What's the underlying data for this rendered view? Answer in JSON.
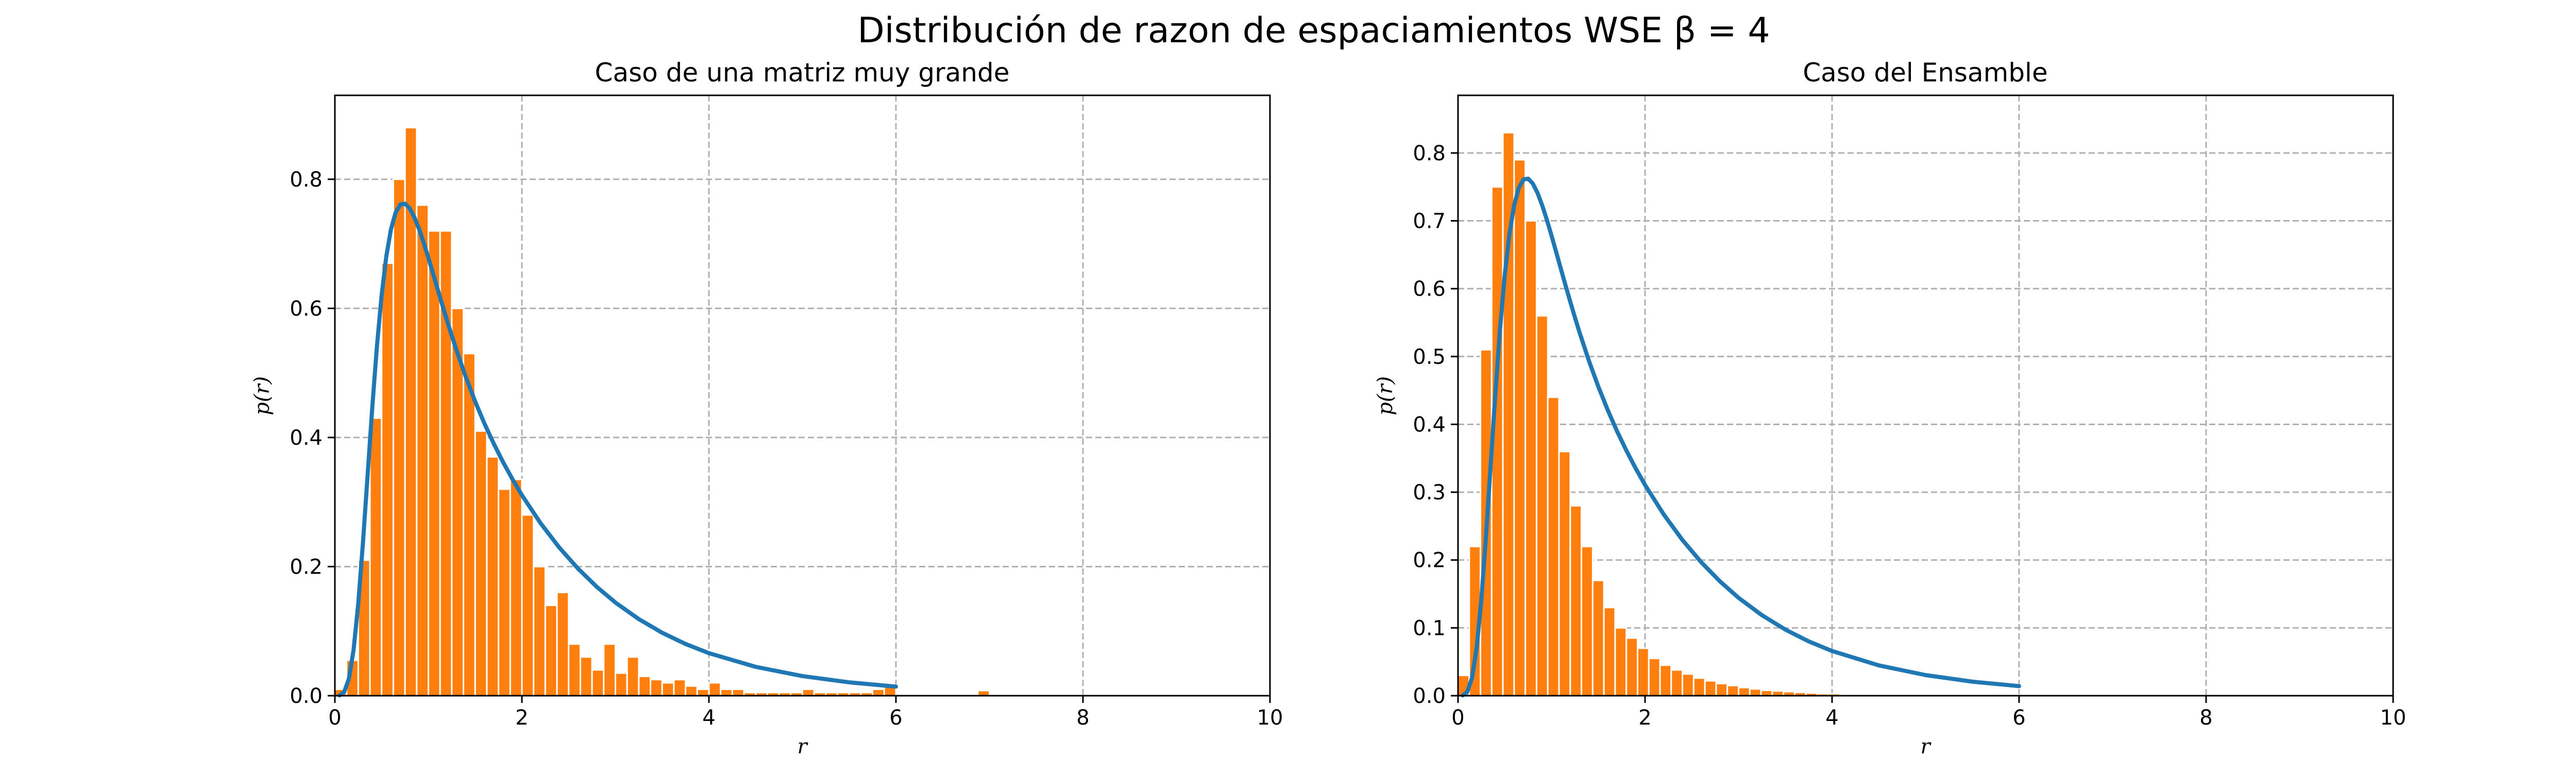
{
  "figure": {
    "suptitle": "Distribución de razon de espaciamientos WSE β = 4"
  },
  "colors": {
    "hist": "#ff7f0e",
    "curve": "#1f77b4",
    "grid": "#b0b0b0"
  },
  "chart_data": [
    {
      "type": "bar",
      "title": "Caso de una matriz muy grande",
      "xlabel": "r",
      "ylabel": "p(r)",
      "xlim": [
        0,
        10
      ],
      "ylim": [
        0,
        0.93
      ],
      "xticks": [
        0,
        2,
        4,
        6,
        8,
        10
      ],
      "yticks": [
        0.0,
        0.2,
        0.4,
        0.6,
        0.8
      ],
      "yticklabels": [
        "0.0",
        "0.2",
        "0.4",
        "0.6",
        "0.8"
      ],
      "grid": true,
      "bin_start": 0.0,
      "bin_width": 0.125,
      "values": [
        0.01,
        0.055,
        0.21,
        0.43,
        0.67,
        0.8,
        0.88,
        0.76,
        0.72,
        0.72,
        0.6,
        0.53,
        0.41,
        0.37,
        0.32,
        0.335,
        0.28,
        0.2,
        0.14,
        0.16,
        0.08,
        0.06,
        0.04,
        0.08,
        0.035,
        0.06,
        0.03,
        0.025,
        0.02,
        0.025,
        0.015,
        0.01,
        0.02,
        0.01,
        0.01,
        0.005,
        0.005,
        0.005,
        0.005,
        0.005,
        0.01,
        0.005,
        0.005,
        0.005,
        0.005,
        0.005,
        0.01,
        0.015,
        0,
        0,
        0,
        0,
        0,
        0,
        0,
        0.008
      ],
      "curve": {
        "x": [
          0.05,
          0.1,
          0.15,
          0.2,
          0.25,
          0.3,
          0.35,
          0.4,
          0.45,
          0.5,
          0.55,
          0.6,
          0.65,
          0.7,
          0.75,
          0.8,
          0.85,
          0.9,
          0.95,
          1.0,
          1.05,
          1.1,
          1.15,
          1.2,
          1.25,
          1.3,
          1.4,
          1.5,
          1.6,
          1.7,
          1.8,
          1.9,
          2.0,
          2.2,
          2.4,
          2.6,
          2.8,
          3.0,
          3.25,
          3.5,
          3.75,
          4.0,
          4.5,
          5.0,
          5.5,
          6.0
        ],
        "y": [
          0.0004,
          0.0059,
          0.0264,
          0.071,
          0.1427,
          0.2365,
          0.3417,
          0.4467,
          0.5417,
          0.6205,
          0.6807,
          0.7227,
          0.7486,
          0.7609,
          0.7622,
          0.7549,
          0.7412,
          0.7229,
          0.7016,
          0.6782,
          0.6538,
          0.6292,
          0.6048,
          0.5809,
          0.5577,
          0.5354,
          0.4937,
          0.4558,
          0.4214,
          0.3901,
          0.3615,
          0.3351,
          0.3107,
          0.2672,
          0.2295,
          0.1969,
          0.1687,
          0.1443,
          0.1187,
          0.0975,
          0.0801,
          0.0659,
          0.0447,
          0.0304,
          0.0207,
          0.0141
        ]
      }
    },
    {
      "type": "bar",
      "title": "Caso del Ensamble",
      "xlabel": "r",
      "ylabel": "p(r)",
      "xlim": [
        0,
        10
      ],
      "ylim": [
        0,
        0.885
      ],
      "xticks": [
        0,
        2,
        4,
        6,
        8,
        10
      ],
      "yticks": [
        0.0,
        0.1,
        0.2,
        0.3,
        0.4,
        0.5,
        0.6,
        0.7,
        0.8
      ],
      "yticklabels": [
        "0.0",
        "0.1",
        "0.2",
        "0.3",
        "0.4",
        "0.5",
        "0.6",
        "0.7",
        "0.8"
      ],
      "grid": true,
      "bin_start": 0.0,
      "bin_width": 0.12,
      "values": [
        0.03,
        0.22,
        0.51,
        0.75,
        0.83,
        0.79,
        0.7,
        0.56,
        0.44,
        0.36,
        0.28,
        0.22,
        0.17,
        0.13,
        0.1,
        0.085,
        0.07,
        0.055,
        0.045,
        0.038,
        0.032,
        0.026,
        0.022,
        0.018,
        0.015,
        0.012,
        0.01,
        0.008,
        0.007,
        0.006,
        0.005,
        0.004,
        0.003,
        0.003,
        0.002,
        0.002,
        0.002,
        0.001,
        0.001,
        0.001,
        0.001,
        0.001,
        0.001,
        0.001,
        0.001,
        0.001,
        0.001,
        0.001,
        0.001,
        0.001
      ],
      "curve": {
        "x": [
          0.05,
          0.1,
          0.15,
          0.2,
          0.25,
          0.3,
          0.35,
          0.4,
          0.45,
          0.5,
          0.55,
          0.6,
          0.65,
          0.7,
          0.75,
          0.8,
          0.85,
          0.9,
          0.95,
          1.0,
          1.05,
          1.1,
          1.15,
          1.2,
          1.25,
          1.3,
          1.4,
          1.5,
          1.6,
          1.7,
          1.8,
          1.9,
          2.0,
          2.2,
          2.4,
          2.6,
          2.8,
          3.0,
          3.25,
          3.5,
          3.75,
          4.0,
          4.5,
          5.0,
          5.5,
          6.0
        ],
        "y": [
          0.0004,
          0.0059,
          0.0264,
          0.071,
          0.1427,
          0.2365,
          0.3417,
          0.4467,
          0.5417,
          0.6205,
          0.6807,
          0.7227,
          0.7486,
          0.7609,
          0.7622,
          0.7549,
          0.7412,
          0.7229,
          0.7016,
          0.6782,
          0.6538,
          0.6292,
          0.6048,
          0.5809,
          0.5577,
          0.5354,
          0.4937,
          0.4558,
          0.4214,
          0.3901,
          0.3615,
          0.3351,
          0.3107,
          0.2672,
          0.2295,
          0.1969,
          0.1687,
          0.1443,
          0.1187,
          0.0975,
          0.0801,
          0.0659,
          0.0447,
          0.0304,
          0.0207,
          0.0141
        ]
      }
    }
  ]
}
